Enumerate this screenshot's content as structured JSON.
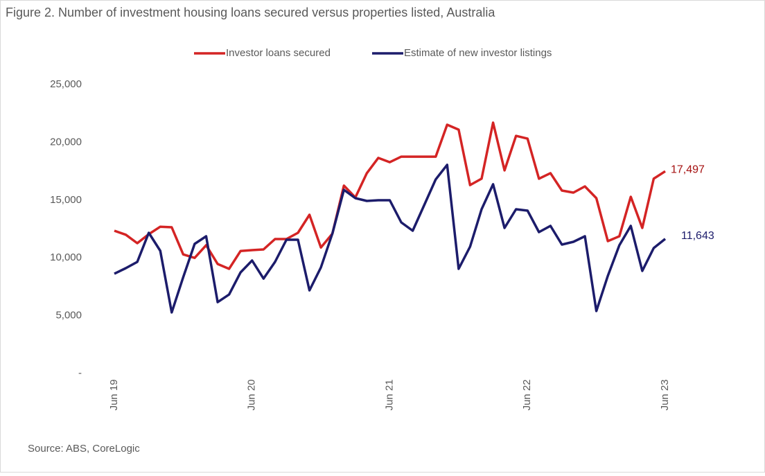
{
  "chart_data": {
    "type": "line",
    "title": "Figure 2. Number of investment housing loans secured versus properties listed, Australia",
    "source": "Source: ABS, CoreLogic",
    "categories": [
      "Jun 19",
      null,
      null,
      null,
      null,
      null,
      null,
      null,
      null,
      null,
      null,
      null,
      "Jun 20",
      null,
      null,
      null,
      null,
      null,
      null,
      null,
      null,
      null,
      null,
      null,
      "Jun 21",
      null,
      null,
      null,
      null,
      null,
      null,
      null,
      null,
      null,
      null,
      null,
      "Jun 22",
      null,
      null,
      null,
      null,
      null,
      null,
      null,
      null,
      null,
      null,
      null,
      "Jun 23"
    ],
    "series": [
      {
        "name": "Investor loans secured",
        "color": "#d42424",
        "label_color": "#a51010",
        "values": [
          12350,
          12000,
          11270,
          12050,
          12700,
          12650,
          10300,
          10000,
          11100,
          9470,
          9050,
          10600,
          10670,
          10730,
          11630,
          11630,
          12170,
          13730,
          10900,
          12100,
          16250,
          15230,
          17330,
          18650,
          18280,
          18760,
          18760,
          18760,
          18760,
          21520,
          21100,
          16300,
          16850,
          21700,
          17570,
          20560,
          20320,
          16850,
          17330,
          15830,
          15650,
          16190,
          15170,
          11450,
          11870,
          15290,
          12590,
          16850,
          17497
        ],
        "value_labels": [
          null,
          null,
          null,
          null,
          null,
          null,
          null,
          null,
          null,
          null,
          null,
          null,
          null,
          null,
          null,
          null,
          null,
          null,
          null,
          null,
          null,
          null,
          null,
          null,
          null,
          null,
          null,
          null,
          null,
          null,
          null,
          null,
          null,
          null,
          null,
          null,
          null,
          null,
          null,
          null,
          null,
          null,
          null,
          null,
          null,
          null,
          null,
          null,
          "17,497"
        ]
      },
      {
        "name": "Estimate of new investor listings",
        "color": "#1c1c6b",
        "label_color": "#1c1c6b",
        "values": [
          8630,
          9110,
          9650,
          12170,
          10610,
          5280,
          8330,
          11210,
          11870,
          6170,
          6830,
          8750,
          9770,
          8210,
          9650,
          11570,
          11570,
          7190,
          9170,
          12110,
          15890,
          15170,
          14930,
          14990,
          14990,
          13070,
          12350,
          14570,
          16790,
          18050,
          9050,
          10970,
          14210,
          16370,
          12590,
          14210,
          14090,
          12230,
          12770,
          11150,
          11390,
          11870,
          5400,
          8450,
          11090,
          12770,
          8870,
          10850,
          11643
        ],
        "value_labels": [
          null,
          null,
          null,
          null,
          null,
          null,
          null,
          null,
          null,
          null,
          null,
          null,
          null,
          null,
          null,
          null,
          null,
          null,
          null,
          null,
          null,
          null,
          null,
          null,
          null,
          null,
          null,
          null,
          null,
          null,
          null,
          null,
          null,
          null,
          null,
          null,
          null,
          null,
          null,
          null,
          null,
          null,
          null,
          null,
          null,
          null,
          null,
          null,
          "11,643"
        ]
      }
    ],
    "ylim": [
      0,
      25000
    ],
    "yticks": [
      {
        "value": 0,
        "label": "-"
      },
      {
        "value": 5000,
        "label": "5,000"
      },
      {
        "value": 10000,
        "label": "10,000"
      },
      {
        "value": 15000,
        "label": "15,000"
      },
      {
        "value": 20000,
        "label": "20,000"
      },
      {
        "value": 25000,
        "label": "25,000"
      }
    ],
    "grid": false,
    "legend": "top"
  }
}
